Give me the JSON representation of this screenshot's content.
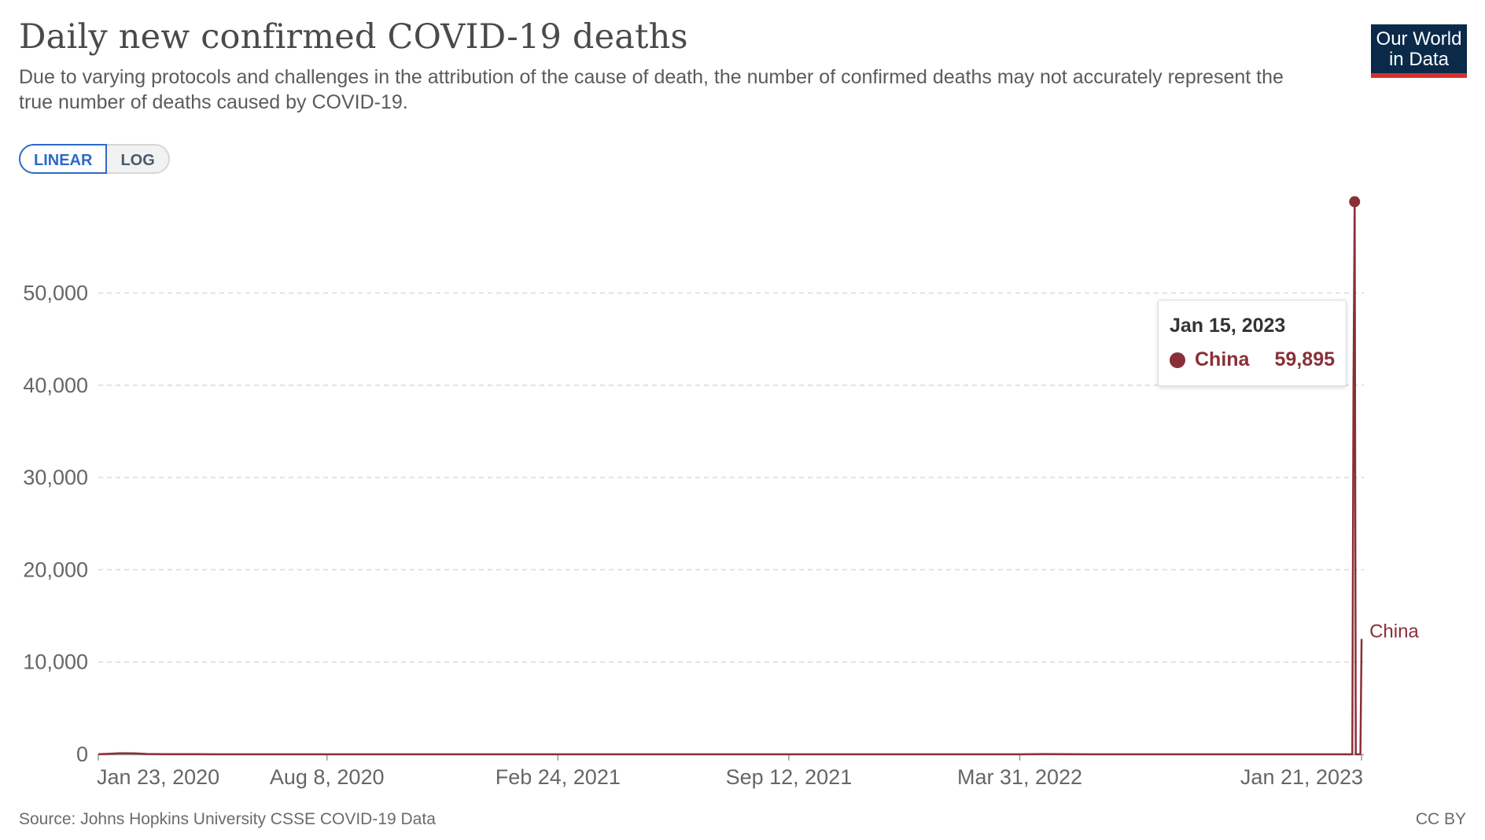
{
  "header": {
    "title": "Daily new confirmed COVID-19 deaths",
    "subtitle": "Due to varying protocols and challenges in the attribution of the cause of death, the number of confirmed deaths may not accurately represent the true number of deaths caused by COVID-19."
  },
  "logo": {
    "line1": "Our World",
    "line2": "in Data",
    "color": "#0b2a4a",
    "accent": "#d2312f"
  },
  "scale_toggle": {
    "linear_label": "LINEAR",
    "log_label": "LOG",
    "selected": "LINEAR"
  },
  "footer": {
    "source": "Source: Johns Hopkins University CSSE COVID-19 Data",
    "license": "CC BY"
  },
  "tooltip": {
    "date": "Jan 15, 2023",
    "series": "China",
    "value": "59,895"
  },
  "chart_data": {
    "type": "line",
    "title": "Daily new confirmed COVID-19 deaths",
    "xlabel": "",
    "ylabel": "",
    "xlim": [
      "2020-01-23",
      "2023-01-23"
    ],
    "ylim": [
      0,
      60000
    ],
    "y_ticks": [
      0,
      10000,
      20000,
      30000,
      40000,
      50000
    ],
    "y_tick_labels": [
      "0",
      "10,000",
      "20,000",
      "30,000",
      "40,000",
      "50,000"
    ],
    "x_ticks": [
      "2020-01-23",
      "2020-08-08",
      "2021-02-24",
      "2021-09-12",
      "2022-03-31",
      "2023-01-21"
    ],
    "x_tick_labels": [
      "Jan 23, 2020",
      "Aug 8, 2020",
      "Feb 24, 2021",
      "Sep 12, 2021",
      "Mar 31, 2022",
      "Jan 21, 2023"
    ],
    "grid": "horizontal dashed",
    "series": [
      {
        "name": "China",
        "color": "#8a2f37",
        "points": [
          [
            "2020-01-23",
            10
          ],
          [
            "2020-02-01",
            50
          ],
          [
            "2020-02-10",
            100
          ],
          [
            "2020-02-17",
            105
          ],
          [
            "2020-02-24",
            90
          ],
          [
            "2020-03-05",
            30
          ],
          [
            "2020-03-20",
            5
          ],
          [
            "2020-04-17",
            5
          ],
          [
            "2020-05-01",
            0
          ],
          [
            "2022-04-01",
            0
          ],
          [
            "2022-04-20",
            20
          ],
          [
            "2022-05-10",
            10
          ],
          [
            "2022-06-01",
            0
          ],
          [
            "2023-01-13",
            0
          ],
          [
            "2023-01-14",
            40000
          ],
          [
            "2023-01-15",
            59895
          ],
          [
            "2023-01-16",
            0
          ],
          [
            "2023-01-20",
            0
          ],
          [
            "2023-01-21",
            12500
          ]
        ],
        "highlight": {
          "date": "2023-01-15",
          "value": 59895
        },
        "end_label": "China"
      }
    ]
  }
}
